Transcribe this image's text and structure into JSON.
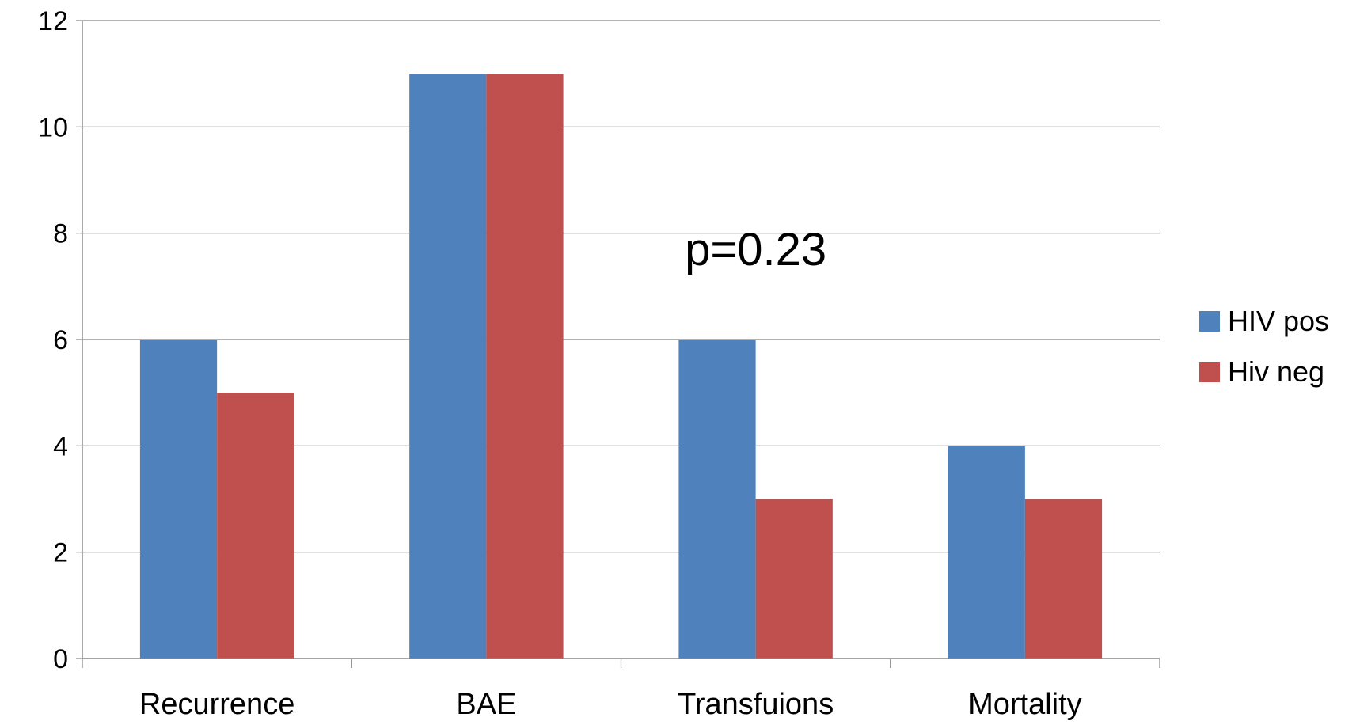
{
  "chart_data": {
    "type": "bar",
    "title": "",
    "xlabel": "",
    "ylabel": "",
    "categories": [
      "Recurrence",
      "BAE",
      "Transfuions",
      "Mortality"
    ],
    "series": [
      {
        "name": "HIV pos",
        "color": "#4F81BD",
        "values": [
          6,
          11,
          6,
          4
        ]
      },
      {
        "name": "Hiv neg",
        "color": "#C0504D",
        "values": [
          5,
          11,
          3,
          3
        ]
      }
    ],
    "ylim": [
      0,
      12
    ],
    "yticks": [
      0,
      2,
      4,
      6,
      8,
      10,
      12
    ],
    "grid": true,
    "legend_position": "right",
    "annotations": [
      {
        "text": "p=0.23",
        "category": "Transfuions",
        "y": 7.4
      }
    ]
  }
}
